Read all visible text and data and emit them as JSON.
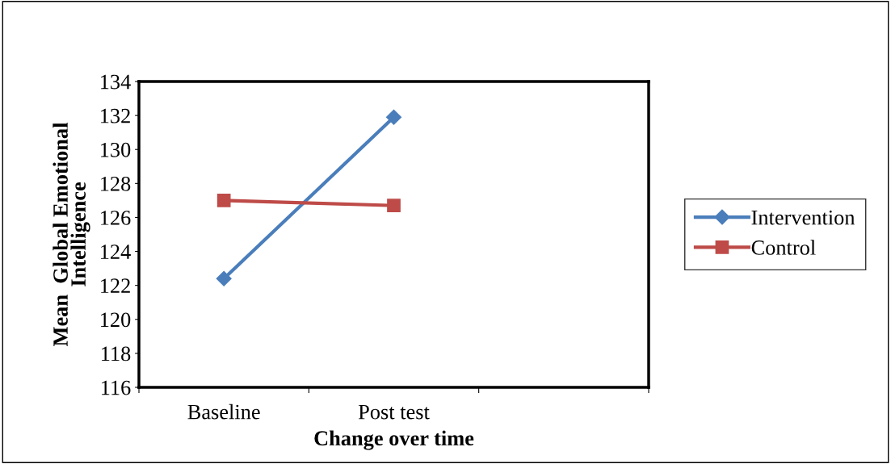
{
  "chart_data": {
    "type": "line",
    "xlabel": "Change over time",
    "ylabel": "Mean  Global Emotional\nIntelligence",
    "categories": [
      "Baseline",
      "Post test",
      null
    ],
    "series": [
      {
        "name": "Intervention",
        "color": "#4a7ebb",
        "values": [
          122.4,
          131.9,
          null
        ],
        "marker": "diamond"
      },
      {
        "name": "Control",
        "color": "#be4b48",
        "values": [
          127.0,
          126.7,
          null
        ],
        "marker": "square"
      }
    ],
    "ylim": [
      116,
      134
    ],
    "yticks": [
      116,
      118,
      120,
      122,
      124,
      126,
      128,
      130,
      132,
      134
    ],
    "grid": false,
    "legend": "right",
    "line_style": "solid"
  }
}
